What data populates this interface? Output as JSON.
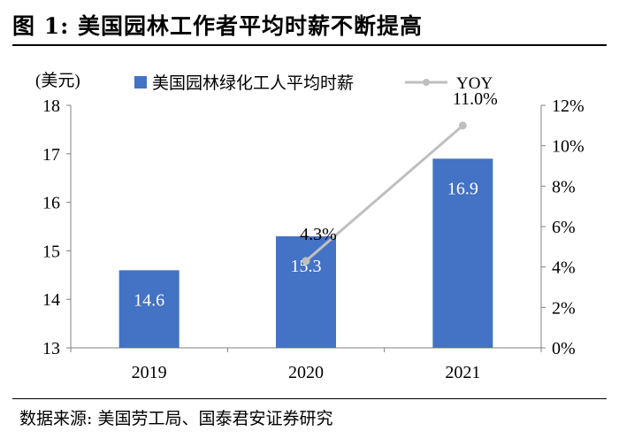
{
  "figure_title": "图 1:  美国园林工作者平均时薪不断提高",
  "source": "数据来源:  美国劳工局、国泰君安证券研究",
  "colors": {
    "bar": "#4472C4",
    "line": "#BFBFBF",
    "axis": "#808080"
  },
  "chart_data": {
    "type": "bar",
    "categories": [
      "2019",
      "2020",
      "2021"
    ],
    "series": [
      {
        "name": "美国园林绿化工人平均时薪",
        "type": "bar",
        "axis": "left",
        "values": [
          14.6,
          15.3,
          16.9
        ],
        "data_labels": [
          "14.6",
          "15.3",
          "16.9"
        ]
      },
      {
        "name": "YOY",
        "type": "line",
        "axis": "right",
        "values": [
          null,
          4.3,
          11.0
        ],
        "data_labels": [
          "",
          "4.3%",
          "11.0%"
        ]
      }
    ],
    "left_unit": "(美元)",
    "ylim": [
      13,
      18
    ],
    "yticks": [
      "13",
      "14",
      "15",
      "16",
      "17",
      "18"
    ],
    "y2lim": [
      0,
      12
    ],
    "y2ticks": [
      "0%",
      "2%",
      "4%",
      "6%",
      "8%",
      "10%",
      "12%"
    ],
    "legend_position": "top",
    "grid": false
  }
}
